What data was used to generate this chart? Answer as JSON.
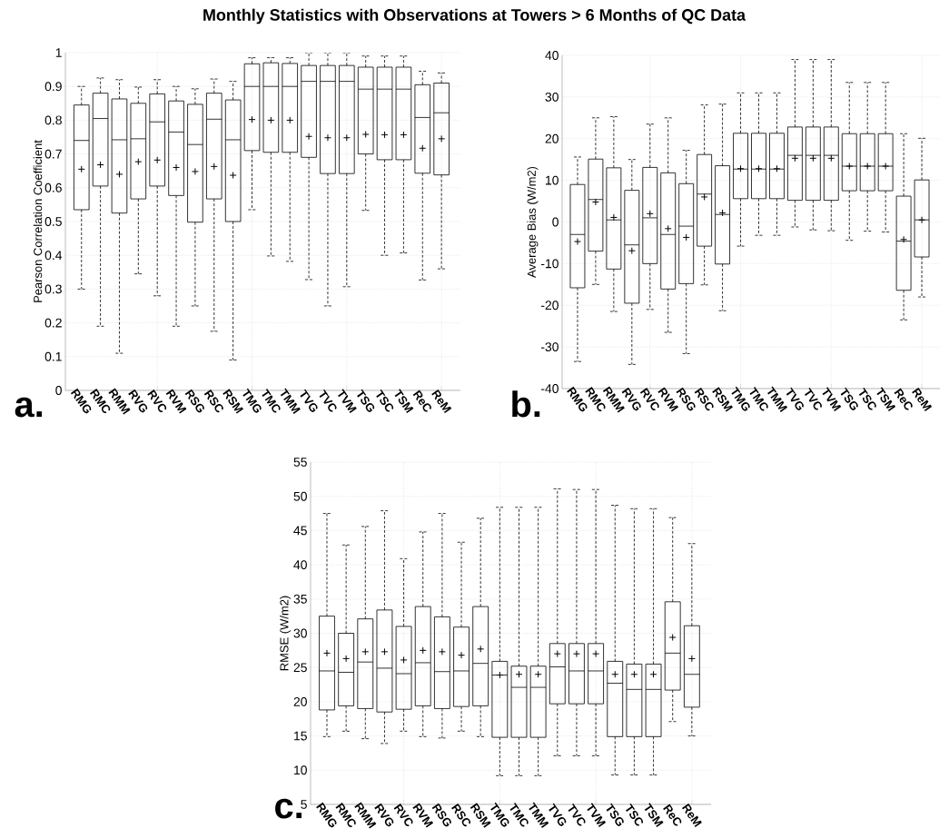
{
  "chart_data": [
    {
      "type": "box",
      "title": "Monthly Statistics with Observations at Towers > 6 Months of QC Data",
      "ylabel": "Pearson Correlation Coefficient",
      "categories": [
        "RMG",
        "RMC",
        "RMM",
        "RVG",
        "RVC",
        "RVM",
        "RSG",
        "RSC",
        "RSM",
        "TMG",
        "TMC",
        "TMM",
        "TVG",
        "TVC",
        "TVM",
        "TSG",
        "TSC",
        "TSM",
        "ReC",
        "ReM"
      ],
      "ylim": [
        0,
        1
      ],
      "yticks": [
        0,
        0.1,
        0.2,
        0.3,
        0.4,
        0.5,
        0.6,
        0.7,
        0.8,
        0.9,
        1
      ],
      "grid": true,
      "annotations": [
        "a."
      ],
      "boxes": [
        {
          "low": 0.3,
          "q1": 0.535,
          "median": 0.74,
          "q3": 0.845,
          "high": 0.9,
          "mean": 0.655
        },
        {
          "low": 0.19,
          "q1": 0.605,
          "median": 0.805,
          "q3": 0.88,
          "high": 0.925,
          "mean": 0.668
        },
        {
          "low": 0.11,
          "q1": 0.525,
          "median": 0.742,
          "q3": 0.863,
          "high": 0.92,
          "mean": 0.64
        },
        {
          "low": 0.345,
          "q1": 0.567,
          "median": 0.745,
          "q3": 0.85,
          "high": 0.898,
          "mean": 0.677
        },
        {
          "low": 0.28,
          "q1": 0.605,
          "median": 0.795,
          "q3": 0.878,
          "high": 0.92,
          "mean": 0.682
        },
        {
          "low": 0.19,
          "q1": 0.577,
          "median": 0.765,
          "q3": 0.857,
          "high": 0.9,
          "mean": 0.66
        },
        {
          "low": 0.25,
          "q1": 0.498,
          "median": 0.728,
          "q3": 0.847,
          "high": 0.893,
          "mean": 0.648
        },
        {
          "low": 0.175,
          "q1": 0.567,
          "median": 0.803,
          "q3": 0.88,
          "high": 0.922,
          "mean": 0.663
        },
        {
          "low": 0.09,
          "q1": 0.5,
          "median": 0.742,
          "q3": 0.86,
          "high": 0.915,
          "mean": 0.637
        },
        {
          "low": 0.535,
          "q1": 0.71,
          "median": 0.9,
          "q3": 0.967,
          "high": 0.985,
          "mean": 0.802
        },
        {
          "low": 0.398,
          "q1": 0.705,
          "median": 0.9,
          "q3": 0.97,
          "high": 0.985,
          "mean": 0.8
        },
        {
          "low": 0.382,
          "q1": 0.705,
          "median": 0.9,
          "q3": 0.968,
          "high": 0.985,
          "mean": 0.8
        },
        {
          "low": 0.328,
          "q1": 0.69,
          "median": 0.915,
          "q3": 0.962,
          "high": 1.0,
          "mean": 0.752
        },
        {
          "low": 0.25,
          "q1": 0.642,
          "median": 0.915,
          "q3": 0.962,
          "high": 1.0,
          "mean": 0.748
        },
        {
          "low": 0.307,
          "q1": 0.642,
          "median": 0.915,
          "q3": 0.962,
          "high": 1.0,
          "mean": 0.748
        },
        {
          "low": 0.533,
          "q1": 0.7,
          "median": 0.892,
          "q3": 0.957,
          "high": 0.99,
          "mean": 0.758
        },
        {
          "low": 0.4,
          "q1": 0.683,
          "median": 0.892,
          "q3": 0.957,
          "high": 0.99,
          "mean": 0.757
        },
        {
          "low": 0.407,
          "q1": 0.683,
          "median": 0.892,
          "q3": 0.957,
          "high": 0.99,
          "mean": 0.757
        },
        {
          "low": 0.327,
          "q1": 0.643,
          "median": 0.808,
          "q3": 0.905,
          "high": 0.945,
          "mean": 0.717
        },
        {
          "low": 0.36,
          "q1": 0.638,
          "median": 0.822,
          "q3": 0.91,
          "high": 0.94,
          "mean": 0.745
        }
      ]
    },
    {
      "type": "box",
      "ylabel": "Average Bias (W/m2)",
      "categories": [
        "RMG",
        "RMC",
        "RMM",
        "RVG",
        "RVC",
        "RVM",
        "RSG",
        "RSC",
        "RSM",
        "TMG",
        "TMC",
        "TMM",
        "TVG",
        "TVC",
        "TVM",
        "TSG",
        "TSC",
        "TSM",
        "ReC",
        "ReM"
      ],
      "ylim": [
        -40,
        40
      ],
      "yticks": [
        -40,
        -30,
        -20,
        -10,
        0,
        10,
        20,
        30,
        40
      ],
      "grid": true,
      "annotations": [
        "b."
      ],
      "boxes": [
        {
          "low": -33.5,
          "q1": -15.8,
          "median": -3,
          "q3": 9,
          "high": 15.6,
          "mean": -4.7
        },
        {
          "low": -15,
          "q1": -7,
          "median": 5.4,
          "q3": 15.1,
          "high": 25,
          "mean": 4.8
        },
        {
          "low": -21.5,
          "q1": -11.3,
          "median": 0.5,
          "q3": 13,
          "high": 25.3,
          "mean": 1.1
        },
        {
          "low": -34.2,
          "q1": -19.5,
          "median": -5.5,
          "q3": 7.6,
          "high": 15,
          "mean": -6.9
        },
        {
          "low": -21,
          "q1": -10,
          "median": 1,
          "q3": 13.1,
          "high": 23.5,
          "mean": 2
        },
        {
          "low": -26.5,
          "q1": -16.1,
          "median": -3,
          "q3": 11.8,
          "high": 25,
          "mean": -1.6
        },
        {
          "low": -31.6,
          "q1": -14.8,
          "median": -1,
          "q3": 9.2,
          "high": 17.2,
          "mean": -3.7
        },
        {
          "low": -15.1,
          "q1": -5.8,
          "median": 6.7,
          "q3": 16.2,
          "high": 28.1,
          "mean": 6
        },
        {
          "low": -21.3,
          "q1": -10.1,
          "median": 1.8,
          "q3": 13.5,
          "high": 28.3,
          "mean": 2.2
        },
        {
          "low": -5.8,
          "q1": 5.6,
          "median": 12.7,
          "q3": 21.3,
          "high": 31,
          "mean": 12.8
        },
        {
          "low": -3.2,
          "q1": 5.6,
          "median": 12.7,
          "q3": 21.3,
          "high": 31,
          "mean": 12.8
        },
        {
          "low": -3.2,
          "q1": 5.6,
          "median": 12.7,
          "q3": 21.3,
          "high": 31,
          "mean": 12.8
        },
        {
          "low": -1.2,
          "q1": 5.2,
          "median": 16,
          "q3": 22.8,
          "high": 39,
          "mean": 15.3
        },
        {
          "low": -1.9,
          "q1": 5.2,
          "median": 16,
          "q3": 22.8,
          "high": 39,
          "mean": 15.3
        },
        {
          "low": -2.1,
          "q1": 5.2,
          "median": 16,
          "q3": 22.8,
          "high": 39,
          "mean": 15.3
        },
        {
          "low": -4.4,
          "q1": 7.5,
          "median": 13.4,
          "q3": 21.2,
          "high": 33.5,
          "mean": 13.4
        },
        {
          "low": -2.2,
          "q1": 7.5,
          "median": 13.4,
          "q3": 21.2,
          "high": 33.5,
          "mean": 13.4
        },
        {
          "low": -2.4,
          "q1": 7.5,
          "median": 13.4,
          "q3": 21.2,
          "high": 33.5,
          "mean": 13.4
        },
        {
          "low": -23.5,
          "q1": -16.4,
          "median": -4.6,
          "q3": 6.2,
          "high": 21.2,
          "mean": -4.2
        },
        {
          "low": -18,
          "q1": -8.4,
          "median": 0.5,
          "q3": 10.1,
          "high": 20.1,
          "mean": 0.5
        }
      ]
    },
    {
      "type": "box",
      "ylabel": "RMSE (W/m2)",
      "categories": [
        "RMG",
        "RMC",
        "RMM",
        "RVG",
        "RVC",
        "RVM",
        "RSG",
        "RSC",
        "RSM",
        "TMG",
        "TMC",
        "TMM",
        "TVG",
        "TVC",
        "TVM",
        "TSG",
        "TSC",
        "TSM",
        "ReC",
        "ReM"
      ],
      "ylim": [
        5,
        55
      ],
      "yticks": [
        5,
        10,
        15,
        20,
        25,
        30,
        35,
        40,
        45,
        50,
        55
      ],
      "grid": true,
      "annotations": [
        "c."
      ],
      "boxes": [
        {
          "low": 14.9,
          "q1": 18.8,
          "median": 24.5,
          "q3": 32.5,
          "high": 47.5,
          "mean": 27.1
        },
        {
          "low": 15.7,
          "q1": 19.4,
          "median": 24.3,
          "q3": 30,
          "high": 42.9,
          "mean": 26.3
        },
        {
          "low": 14.6,
          "q1": 19,
          "median": 25.8,
          "q3": 32.1,
          "high": 45.6,
          "mean": 27.3
        },
        {
          "low": 13.9,
          "q1": 18.5,
          "median": 24.9,
          "q3": 33.4,
          "high": 47.9,
          "mean": 27.3
        },
        {
          "low": 15.7,
          "q1": 18.9,
          "median": 24.1,
          "q3": 31,
          "high": 40.9,
          "mean": 26.1
        },
        {
          "low": 14.9,
          "q1": 19.4,
          "median": 25.7,
          "q3": 33.9,
          "high": 44.8,
          "mean": 27.5
        },
        {
          "low": 14.7,
          "q1": 19,
          "median": 24.4,
          "q3": 32.4,
          "high": 47.5,
          "mean": 27.3
        },
        {
          "low": 15.7,
          "q1": 19.3,
          "median": 24.5,
          "q3": 30.9,
          "high": 43.3,
          "mean": 26.8
        },
        {
          "low": 14.9,
          "q1": 19.4,
          "median": 25.6,
          "q3": 33.9,
          "high": 46.8,
          "mean": 27.7
        },
        {
          "low": 9.2,
          "q1": 14.8,
          "median": 23.9,
          "q3": 25.9,
          "high": 48.4,
          "mean": 23.9
        },
        {
          "low": 9.2,
          "q1": 14.8,
          "median": 22.1,
          "q3": 25.2,
          "high": 48.4,
          "mean": 24
        },
        {
          "low": 9.2,
          "q1": 14.8,
          "median": 22.1,
          "q3": 25.2,
          "high": 48.4,
          "mean": 24
        },
        {
          "low": 12.1,
          "q1": 19.7,
          "median": 25.1,
          "q3": 28.5,
          "high": 51.1,
          "mean": 27
        },
        {
          "low": 12.1,
          "q1": 19.7,
          "median": 24.5,
          "q3": 28.5,
          "high": 51,
          "mean": 27
        },
        {
          "low": 12.1,
          "q1": 19.7,
          "median": 24.5,
          "q3": 28.5,
          "high": 51,
          "mean": 27
        },
        {
          "low": 9.3,
          "q1": 14.9,
          "median": 22.7,
          "q3": 25.9,
          "high": 48.7,
          "mean": 24
        },
        {
          "low": 9.3,
          "q1": 14.9,
          "median": 21.8,
          "q3": 25.5,
          "high": 48.2,
          "mean": 24
        },
        {
          "low": 9.3,
          "q1": 14.9,
          "median": 21.8,
          "q3": 25.5,
          "high": 48.2,
          "mean": 24
        },
        {
          "low": 17.1,
          "q1": 21.7,
          "median": 27.1,
          "q3": 34.6,
          "high": 46.9,
          "mean": 29.4
        },
        {
          "low": 15,
          "q1": 19.2,
          "median": 24,
          "q3": 31.1,
          "high": 43.1,
          "mean": 26.3
        }
      ]
    }
  ]
}
